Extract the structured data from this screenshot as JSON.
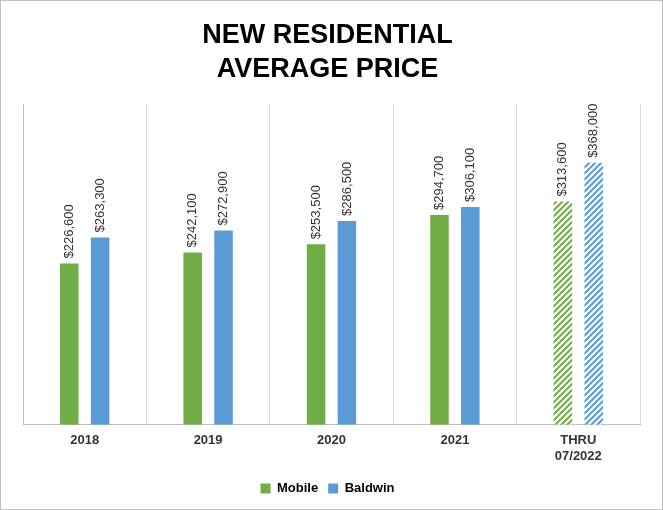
{
  "chart_data": {
    "type": "bar",
    "title": [
      "NEW RESIDENTIAL",
      "AVERAGE PRICE"
    ],
    "categories": [
      "2018",
      "2019",
      "2020",
      "2021",
      "THRU 07/2022"
    ],
    "series": [
      {
        "name": "Mobile",
        "color": "#70ad47",
        "values": [
          226600,
          242100,
          253500,
          294700,
          313600
        ],
        "value_labels": [
          "$226,600",
          "$242,100",
          "$253,500",
          "$294,700",
          "$313,600"
        ]
      },
      {
        "name": "Baldwin",
        "color": "#5b9bd5",
        "values": [
          263300,
          272900,
          286500,
          306100,
          368000
        ],
        "value_labels": [
          "$263,300",
          "$272,900",
          "$286,500",
          "$306,100",
          "$368,000"
        ]
      }
    ],
    "ylim": [
      0,
      450000
    ],
    "yticks": [],
    "grid": "x",
    "legend": "bottom",
    "data_labels": true,
    "tick_labels": "x"
  }
}
